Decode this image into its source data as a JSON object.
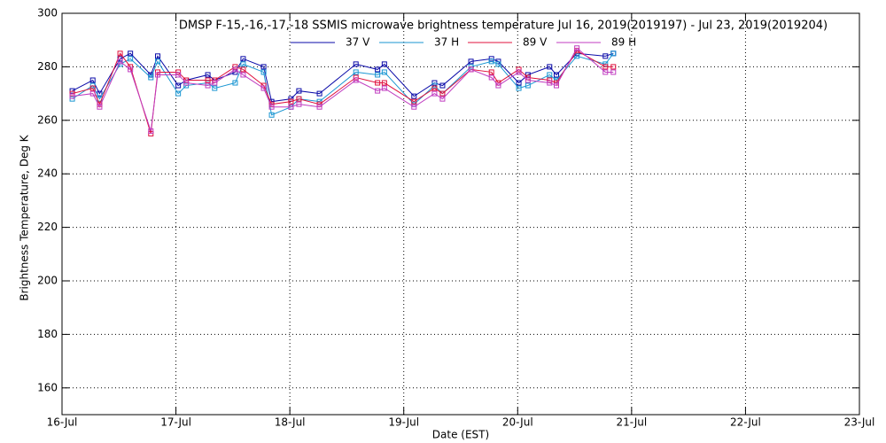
{
  "chart_data": {
    "type": "line",
    "title": "DMSP F-15,-16,-17,-18 SSMIS microwave brightness temperature Jul 16, 2019(2019197) - Jul 23, 2019(2019204)",
    "x_label": "Date (EST)",
    "y_label": "Brightness Temperature, Deg K",
    "x": [
      16.09,
      16.27,
      16.33,
      16.51,
      16.6,
      16.78,
      16.84,
      17.02,
      17.09,
      17.28,
      17.34,
      17.52,
      17.59,
      17.77,
      17.84,
      18.01,
      18.08,
      18.26,
      18.58,
      18.77,
      18.83,
      19.09,
      19.27,
      19.34,
      19.59,
      19.77,
      19.83,
      20.01,
      20.09,
      20.28,
      20.34,
      20.52,
      20.77,
      20.84
    ],
    "series": [
      {
        "name": "37 V",
        "color": "#0a0aa8",
        "values": [
          271,
          275,
          270,
          283,
          285,
          277,
          284,
          273,
          275,
          277,
          275,
          278,
          283,
          280,
          267,
          268,
          271,
          270,
          281,
          279,
          281,
          269,
          274,
          273,
          282,
          283,
          282,
          274,
          277,
          280,
          277,
          285,
          284,
          285
        ]
      },
      {
        "name": "37 H",
        "color": "#1a96d2",
        "values": [
          268,
          273,
          268,
          281,
          283,
          276,
          282,
          270,
          273,
          274,
          272,
          274,
          281,
          278,
          262,
          265,
          268,
          267,
          278,
          277,
          278,
          266,
          273,
          270,
          280,
          282,
          281,
          272,
          273,
          277,
          275,
          284,
          281,
          285
        ]
      },
      {
        "name": "89 V",
        "color": "#e0103c",
        "values": [
          270,
          272,
          266,
          285,
          280,
          255,
          278,
          278,
          275,
          275,
          275,
          280,
          279,
          273,
          266,
          267,
          268,
          266,
          276,
          274,
          274,
          267,
          272,
          270,
          279,
          278,
          274,
          279,
          276,
          275,
          274,
          286,
          280,
          280
        ]
      },
      {
        "name": "89 H",
        "color": "#c03cc0",
        "values": [
          269,
          270,
          265,
          282,
          279,
          256,
          277,
          277,
          274,
          273,
          274,
          279,
          277,
          272,
          265,
          265,
          266,
          265,
          275,
          271,
          272,
          265,
          270,
          268,
          279,
          276,
          273,
          278,
          275,
          274,
          273,
          287,
          278,
          278
        ]
      }
    ],
    "xlim": [
      16,
      23
    ],
    "xticks": [
      {
        "value": 16,
        "label": "16-Jul"
      },
      {
        "value": 17,
        "label": "17-Jul"
      },
      {
        "value": 18,
        "label": "18-Jul"
      },
      {
        "value": 19,
        "label": "19-Jul"
      },
      {
        "value": 20,
        "label": "20-Jul"
      },
      {
        "value": 21,
        "label": "21-Jul"
      },
      {
        "value": 22,
        "label": "22-Jul"
      },
      {
        "value": 23,
        "label": "23-Jul"
      }
    ],
    "ylim": [
      150,
      300
    ],
    "yticks": [
      160,
      180,
      200,
      220,
      240,
      260,
      280,
      300
    ],
    "grid": true
  }
}
